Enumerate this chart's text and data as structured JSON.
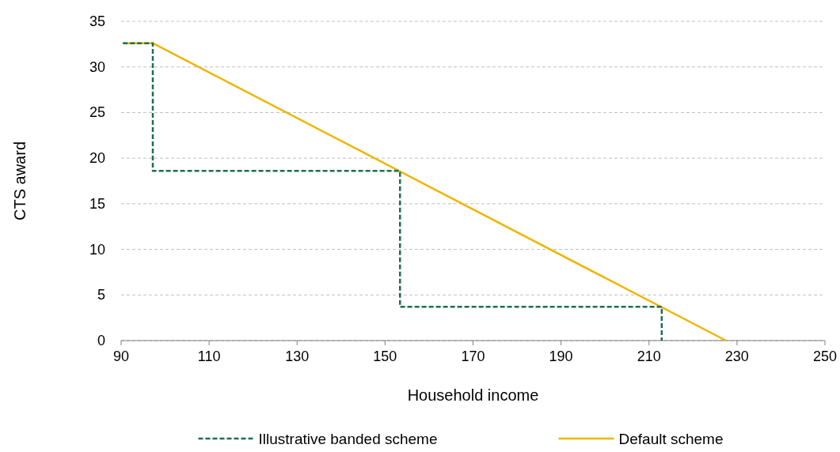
{
  "chart_data": {
    "type": "line",
    "xlabel": "Household income",
    "ylabel": "CTS award",
    "xlim": [
      90,
      250
    ],
    "xticks": [
      90,
      110,
      130,
      150,
      170,
      190,
      210,
      230,
      250
    ],
    "ylim": [
      0,
      35
    ],
    "yticks": [
      0,
      5,
      10,
      15,
      20,
      25,
      30,
      35
    ],
    "grid": "y",
    "legend": "bottom",
    "marker": "none",
    "series": [
      {
        "name": "Illustrative banded scheme",
        "color": "#1e6e50",
        "line_style": "dashed",
        "x": [
          90.4,
          97.2,
          97.2,
          153.4,
          153.4,
          212.9,
          212.9
        ],
        "values": [
          32.6,
          32.6,
          18.6,
          18.6,
          3.7,
          3.7,
          0
        ]
      },
      {
        "name": "Default scheme",
        "color": "#f0b400",
        "line_style": "solid",
        "x": [
          90.4,
          97.2,
          227.5
        ],
        "values": [
          32.6,
          32.6,
          0
        ]
      }
    ]
  }
}
